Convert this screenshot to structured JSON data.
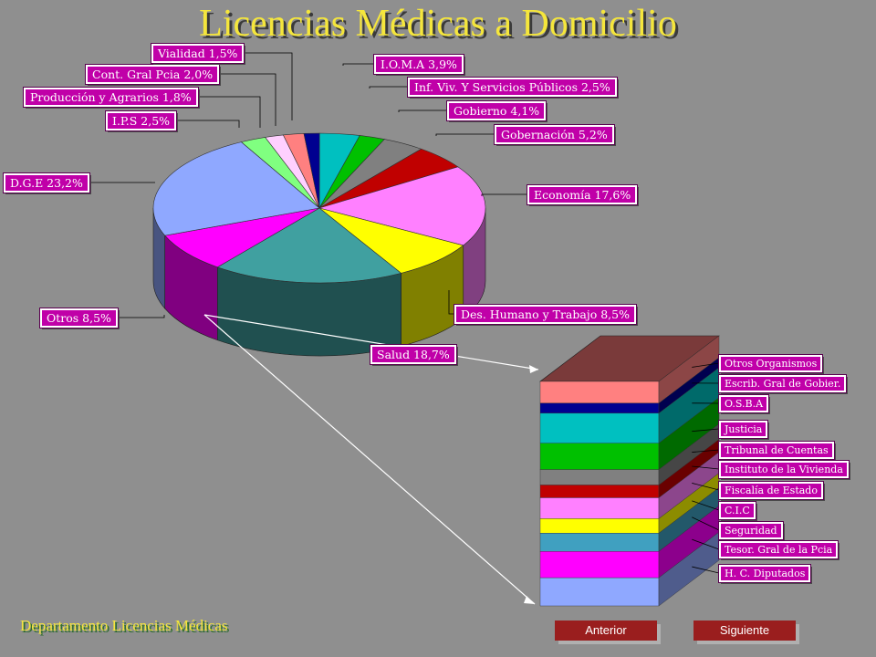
{
  "title": "Licencias Médicas a Domicilio",
  "footer": "Departamento Licencias Médicas",
  "nav": {
    "prev": "Anterior",
    "next": "Siguiente"
  },
  "chart_data": [
    {
      "type": "pie",
      "title": "Licencias Médicas a Domicilio",
      "slices": [
        {
          "label": "I.O.M.A 3,9%",
          "name": "I.O.M.A",
          "value": 3.9,
          "color": "#00c0c0"
        },
        {
          "label": "Inf. Viv. Y Servicios Públicos 2,5%",
          "name": "Inf. Viv. Y Servicios Públicos",
          "value": 2.5,
          "color": "#00c000"
        },
        {
          "label": "Gobierno 4,1%",
          "name": "Gobierno",
          "value": 4.1,
          "color": "#808080"
        },
        {
          "label": "Gobernación 5,2%",
          "name": "Gobernación",
          "value": 5.2,
          "color": "#c00000"
        },
        {
          "label": "Economía 17,6%",
          "name": "Economía",
          "value": 17.6,
          "color": "#ff80ff"
        },
        {
          "label": "Des. Humano y Trabajo 8,5%",
          "name": "Des. Humano y Trabajo",
          "value": 8.5,
          "color": "#ffff00"
        },
        {
          "label": "Salud 18,7%",
          "name": "Salud",
          "value": 18.7,
          "color": "#40a0a0"
        },
        {
          "label": "Otros 8,5%",
          "name": "Otros",
          "value": 8.5,
          "color": "#ff00ff"
        },
        {
          "label": "D.G.E 23,2%",
          "name": "D.G.E",
          "value": 23.2,
          "color": "#8fa8ff"
        },
        {
          "label": "I.P.S 2,5%",
          "name": "I.P.S",
          "value": 2.5,
          "color": "#80ff80"
        },
        {
          "label": "Producción y Agrarios 1,8%",
          "name": "Producción y Agrarios",
          "value": 1.8,
          "color": "#ffd0ff"
        },
        {
          "label": "Cont. Gral Pcia 2,0%",
          "name": "Cont. Gral Pcia",
          "value": 2.0,
          "color": "#ff8080"
        },
        {
          "label": "Vialidad 1,5%",
          "name": "Vialidad",
          "value": 1.5,
          "color": "#000090"
        }
      ]
    },
    {
      "type": "bar",
      "stacked": true,
      "breakdown_of": "Otros 8,5%",
      "segments": [
        {
          "label": "Otros Organismos",
          "color": "#ff8080"
        },
        {
          "label": "Escrib. Gral de Gobier.",
          "color": "#000090"
        },
        {
          "label": "O.S.B.A",
          "color": "#00c0c0"
        },
        {
          "label": "Justicia",
          "color": "#00c000"
        },
        {
          "label": "Tribunal de Cuentas",
          "color": "#808080"
        },
        {
          "label": "Instituto de la Vivienda",
          "color": "#c00000"
        },
        {
          "label": "Fiscalía de Estado",
          "color": "#ff80ff"
        },
        {
          "label": "C.I.C",
          "color": "#ffff00"
        },
        {
          "label": "Seguridad",
          "color": "#40a0c0"
        },
        {
          "label": "Tesor. Gral de la Pcia",
          "color": "#ff00ff"
        },
        {
          "label": "H. C. Diputados",
          "color": "#8fa8ff"
        }
      ]
    }
  ]
}
